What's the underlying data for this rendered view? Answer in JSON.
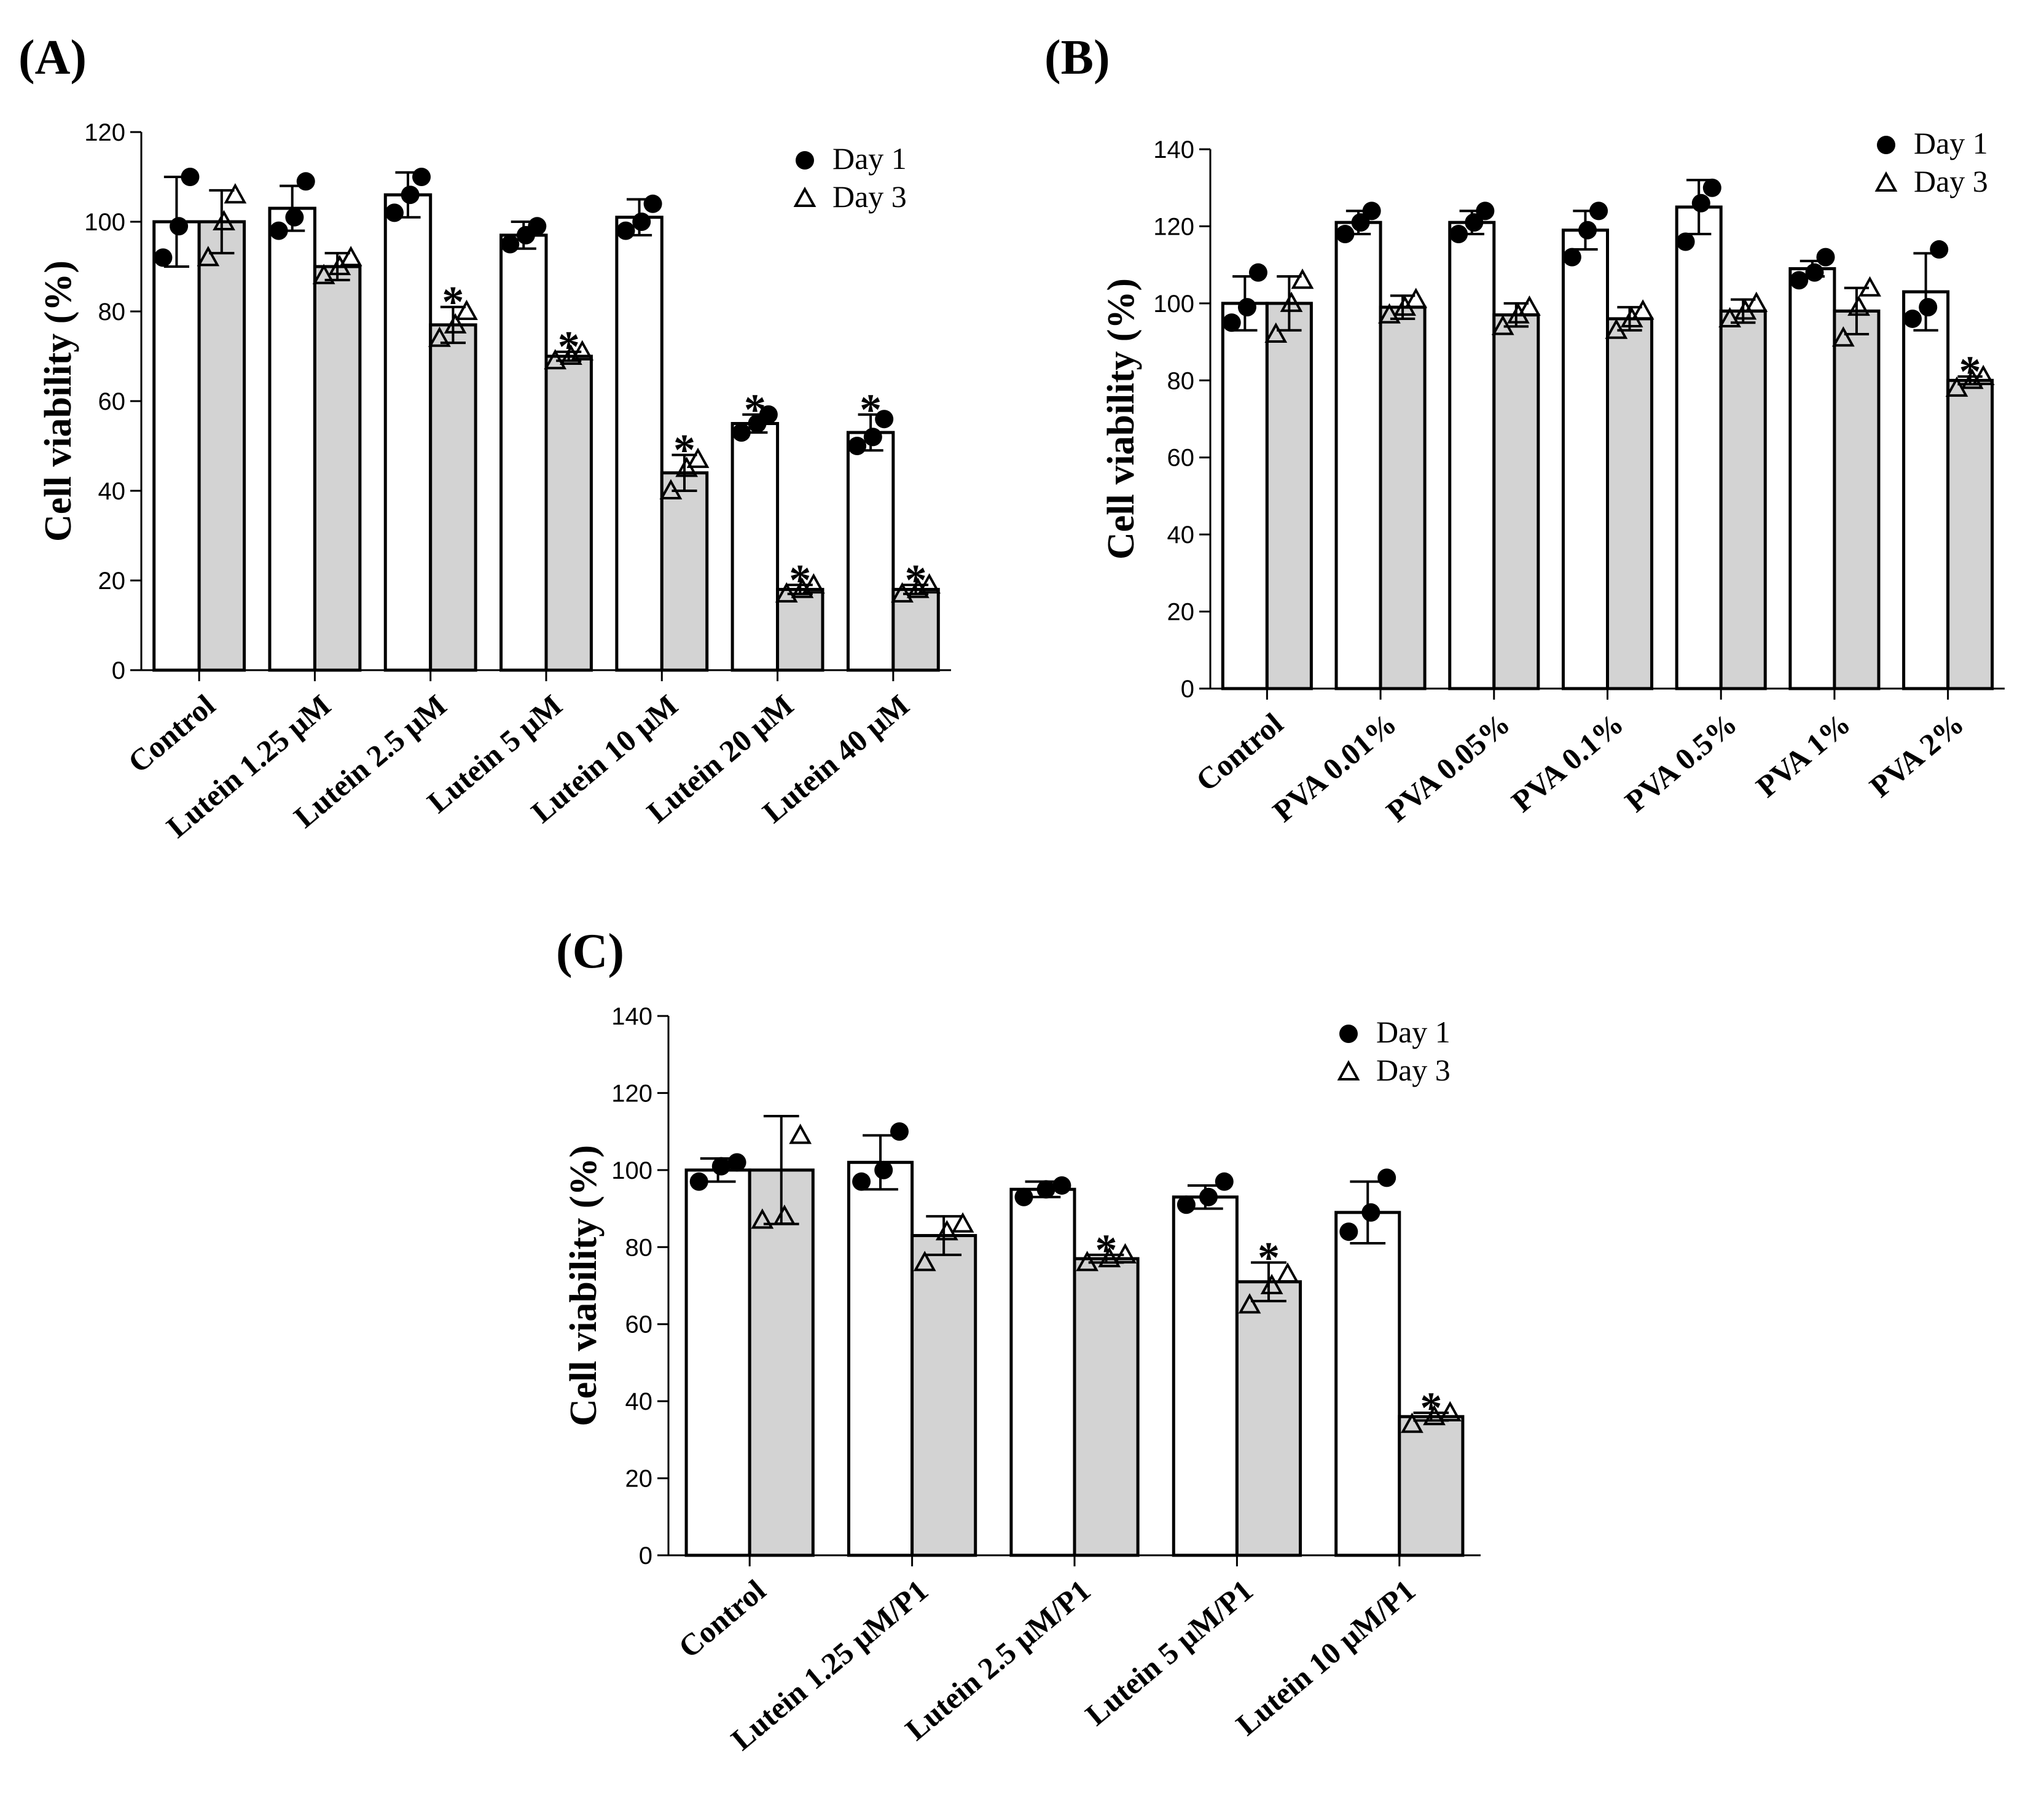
{
  "chart_data": [
    {
      "panel_label": "(A)",
      "type": "bar",
      "ylabel": "Cell viability (%)",
      "xlabel": "",
      "ylim": [
        0,
        120
      ],
      "yticks": [
        0,
        20,
        40,
        60,
        80,
        100,
        120
      ],
      "categories": [
        "Control",
        "Lutein 1.25 μM",
        "Lutein 2.5 μM",
        "Lutein 5 μM",
        "Lutein 10 μM",
        "Lutein 20 μM",
        "Lutein 40 μM"
      ],
      "legend": {
        "position": "top-right",
        "entries": [
          "Day 1",
          "Day 3"
        ]
      },
      "significance_marker": "*",
      "series": [
        {
          "name": "Day 1",
          "marker": "circle",
          "fill": "#ffffff",
          "values": [
            100,
            103,
            106,
            97,
            101,
            55,
            53
          ],
          "errors": [
            10,
            5,
            5,
            3,
            4,
            2,
            4
          ],
          "points": [
            [
              92,
              99,
              110
            ],
            [
              98,
              101,
              109
            ],
            [
              102,
              106,
              110
            ],
            [
              95,
              97,
              99
            ],
            [
              98,
              100,
              104
            ],
            [
              53,
              55,
              57
            ],
            [
              50,
              52,
              56
            ]
          ],
          "significant": [
            false,
            false,
            false,
            false,
            false,
            true,
            true
          ]
        },
        {
          "name": "Day 3",
          "marker": "triangle",
          "fill": "#d3d3d3",
          "values": [
            100,
            90,
            77,
            70,
            44,
            18,
            18
          ],
          "errors": [
            7,
            3,
            4,
            1,
            4,
            1,
            1
          ],
          "points": [
            [
              92,
              100,
              106
            ],
            [
              88,
              90,
              92
            ],
            [
              74,
              77,
              80
            ],
            [
              69,
              70,
              71
            ],
            [
              40,
              45,
              47
            ],
            [
              17,
              18,
              19
            ],
            [
              17,
              18,
              19
            ]
          ],
          "significant": [
            false,
            false,
            true,
            true,
            true,
            true,
            true
          ]
        }
      ]
    },
    {
      "panel_label": "(B)",
      "type": "bar",
      "ylabel": "Cell viability (%)",
      "xlabel": "",
      "ylim": [
        0,
        140
      ],
      "yticks": [
        0,
        20,
        40,
        60,
        80,
        100,
        120,
        140
      ],
      "categories": [
        "Control",
        "PVA 0.01%",
        "PVA 0.05%",
        "PVA 0.1%",
        "PVA 0.5%",
        "PVA 1%",
        "PVA 2%"
      ],
      "legend": {
        "position": "top-right",
        "entries": [
          "Day 1",
          "Day 3"
        ]
      },
      "significance_marker": "*",
      "series": [
        {
          "name": "Day 1",
          "marker": "circle",
          "fill": "#ffffff",
          "values": [
            100,
            121,
            121,
            119,
            125,
            109,
            103
          ],
          "errors": [
            7,
            3,
            3,
            5,
            7,
            2,
            10
          ],
          "points": [
            [
              95,
              99,
              108
            ],
            [
              118,
              121,
              124
            ],
            [
              118,
              121,
              124
            ],
            [
              112,
              119,
              124
            ],
            [
              116,
              126,
              130
            ],
            [
              106,
              108,
              112
            ],
            [
              96,
              99,
              114
            ]
          ],
          "significant": [
            false,
            false,
            false,
            false,
            false,
            false,
            false
          ]
        },
        {
          "name": "Day 3",
          "marker": "triangle",
          "fill": "#d3d3d3",
          "values": [
            100,
            99,
            97,
            96,
            98,
            98,
            80
          ],
          "errors": [
            7,
            3,
            3,
            3,
            3,
            6,
            1
          ],
          "points": [
            [
              92,
              100,
              106
            ],
            [
              97,
              99,
              101
            ],
            [
              94,
              97,
              99
            ],
            [
              93,
              96,
              98
            ],
            [
              96,
              98,
              100
            ],
            [
              91,
              99,
              104
            ],
            [
              78,
              80,
              81
            ]
          ],
          "significant": [
            false,
            false,
            false,
            false,
            false,
            false,
            true
          ]
        }
      ]
    },
    {
      "panel_label": "(C)",
      "type": "bar",
      "ylabel": "Cell viability (%)",
      "xlabel": "",
      "ylim": [
        0,
        140
      ],
      "yticks": [
        0,
        20,
        40,
        60,
        80,
        100,
        120,
        140
      ],
      "categories": [
        "Control",
        "Lutein 1.25 μM/P1",
        "Lutein 2.5 μM/P1",
        "Lutein 5 μM/P1",
        "Lutein 10 μM/P1"
      ],
      "legend": {
        "position": "top-right",
        "entries": [
          "Day 1",
          "Day 3"
        ]
      },
      "significance_marker": "*",
      "series": [
        {
          "name": "Day 1",
          "marker": "circle",
          "fill": "#ffffff",
          "values": [
            100,
            102,
            95,
            93,
            89
          ],
          "errors": [
            3,
            7,
            2,
            3,
            8
          ],
          "points": [
            [
              97,
              101,
              102
            ],
            [
              97,
              100,
              110
            ],
            [
              93,
              95,
              96
            ],
            [
              91,
              93,
              97
            ],
            [
              84,
              89,
              98
            ]
          ],
          "significant": [
            false,
            false,
            false,
            false,
            false
          ]
        },
        {
          "name": "Day 3",
          "marker": "triangle",
          "fill": "#d3d3d3",
          "values": [
            100,
            83,
            77,
            71,
            36
          ],
          "errors": [
            14,
            5,
            1,
            5,
            1
          ],
          "points": [
            [
              87,
              88,
              109
            ],
            [
              76,
              84,
              86
            ],
            [
              76,
              77,
              78
            ],
            [
              65,
              70,
              73
            ],
            [
              34,
              36,
              37
            ]
          ],
          "significant": [
            false,
            false,
            true,
            true,
            true
          ]
        }
      ]
    }
  ]
}
